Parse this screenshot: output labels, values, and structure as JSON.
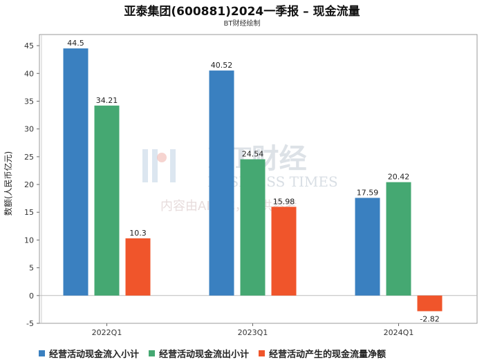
{
  "header": {
    "title": "亚泰集团(600881)2024一季报 – 现金流量",
    "subtitle": "BT财经绘制"
  },
  "watermark": {
    "brand": "BT财经",
    "brand_en": "BUSINESS TIMES",
    "note": "内容由AI生成，仅供参考"
  },
  "chart_data": {
    "type": "bar",
    "title": "亚泰集团(600881)2024一季报 – 现金流量",
    "ylabel": "数额(人民币亿元)",
    "xlabel": "",
    "ylim": [
      -5,
      47
    ],
    "yticks": [
      -5,
      0,
      5,
      10,
      15,
      20,
      25,
      30,
      35,
      40,
      45
    ],
    "categories": [
      "2022Q1",
      "2023Q1",
      "2024Q1"
    ],
    "grid": false,
    "legend_position": "bottom",
    "series": [
      {
        "name": "经营活动现金流入小计",
        "color": "#3a80c0",
        "values": [
          44.5,
          40.52,
          17.59
        ],
        "labels": [
          "44.5",
          "40.52",
          "17.59"
        ]
      },
      {
        "name": "经营活动现金流出小计",
        "color": "#45a872",
        "values": [
          34.21,
          24.54,
          20.42
        ],
        "labels": [
          "34.21",
          "24.54",
          "20.42"
        ]
      },
      {
        "name": "经营活动产生的现金流量净额",
        "color": "#f0552b",
        "values": [
          10.3,
          15.98,
          -2.82
        ],
        "labels": [
          "10.3",
          "15.98",
          "-2.82"
        ]
      }
    ]
  }
}
